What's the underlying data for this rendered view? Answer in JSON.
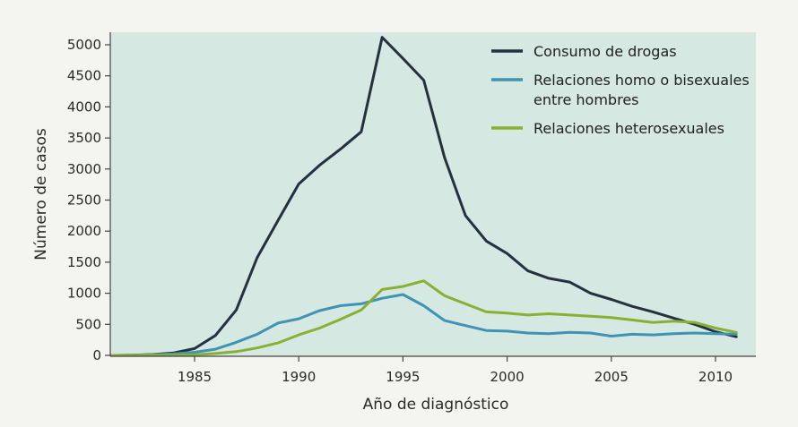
{
  "chart_data": {
    "type": "line",
    "title": "",
    "xlabel": "Año de diagnóstico",
    "ylabel": "Número de casos",
    "xlim": [
      1981,
      2012
    ],
    "ylim": [
      0,
      5200
    ],
    "xticks": [
      1985,
      1990,
      1995,
      2000,
      2005,
      2010
    ],
    "yticks": [
      0,
      500,
      1000,
      1500,
      2000,
      2500,
      3000,
      3500,
      4000,
      4500,
      5000
    ],
    "grid": false,
    "legend_position": "top-right",
    "plot_background": "#d5e8e1",
    "series": [
      {
        "name": "Consumo de drogas",
        "color": "#263040",
        "x": [
          1981,
          1982,
          1983,
          1984,
          1985,
          1986,
          1987,
          1988,
          1989,
          1990,
          1991,
          1992,
          1993,
          1994,
          1995,
          1996,
          1997,
          1998,
          1999,
          2000,
          2001,
          2002,
          2003,
          2004,
          2005,
          2006,
          2007,
          2008,
          2009,
          2010,
          2011
        ],
        "y": [
          0,
          5,
          15,
          40,
          110,
          320,
          730,
          1570,
          2170,
          2760,
          3060,
          3320,
          3600,
          5120,
          4780,
          4430,
          3180,
          2250,
          1840,
          1640,
          1360,
          1240,
          1180,
          1000,
          900,
          790,
          700,
          600,
          500,
          380,
          300
        ]
      },
      {
        "name": "Relaciones homo o bisexuales entre hombres",
        "legend_lines": [
          "Relaciones homo o bisexuales",
          "entre hombres"
        ],
        "color": "#3f93b3",
        "x": [
          1981,
          1982,
          1983,
          1984,
          1985,
          1986,
          1987,
          1988,
          1989,
          1990,
          1991,
          1992,
          1993,
          1994,
          1995,
          1996,
          1997,
          1998,
          1999,
          2000,
          2001,
          2002,
          2003,
          2004,
          2005,
          2006,
          2007,
          2008,
          2009,
          2010,
          2011
        ],
        "y": [
          0,
          3,
          10,
          25,
          50,
          100,
          210,
          340,
          520,
          590,
          720,
          800,
          830,
          920,
          980,
          800,
          560,
          480,
          400,
          390,
          360,
          350,
          370,
          360,
          310,
          340,
          330,
          350,
          360,
          350,
          340
        ]
      },
      {
        "name": "Relaciones heterosexuales",
        "color": "#8ab033",
        "x": [
          1981,
          1982,
          1983,
          1984,
          1985,
          1986,
          1987,
          1988,
          1989,
          1990,
          1991,
          1992,
          1993,
          1994,
          1995,
          1996,
          1997,
          1998,
          1999,
          2000,
          2001,
          2002,
          2003,
          2004,
          2005,
          2006,
          2007,
          2008,
          2009,
          2010,
          2011
        ],
        "y": [
          0,
          0,
          3,
          5,
          10,
          30,
          60,
          120,
          200,
          330,
          440,
          580,
          730,
          1060,
          1110,
          1200,
          960,
          830,
          700,
          680,
          650,
          670,
          650,
          630,
          610,
          570,
          530,
          550,
          530,
          440,
          370
        ]
      }
    ]
  }
}
